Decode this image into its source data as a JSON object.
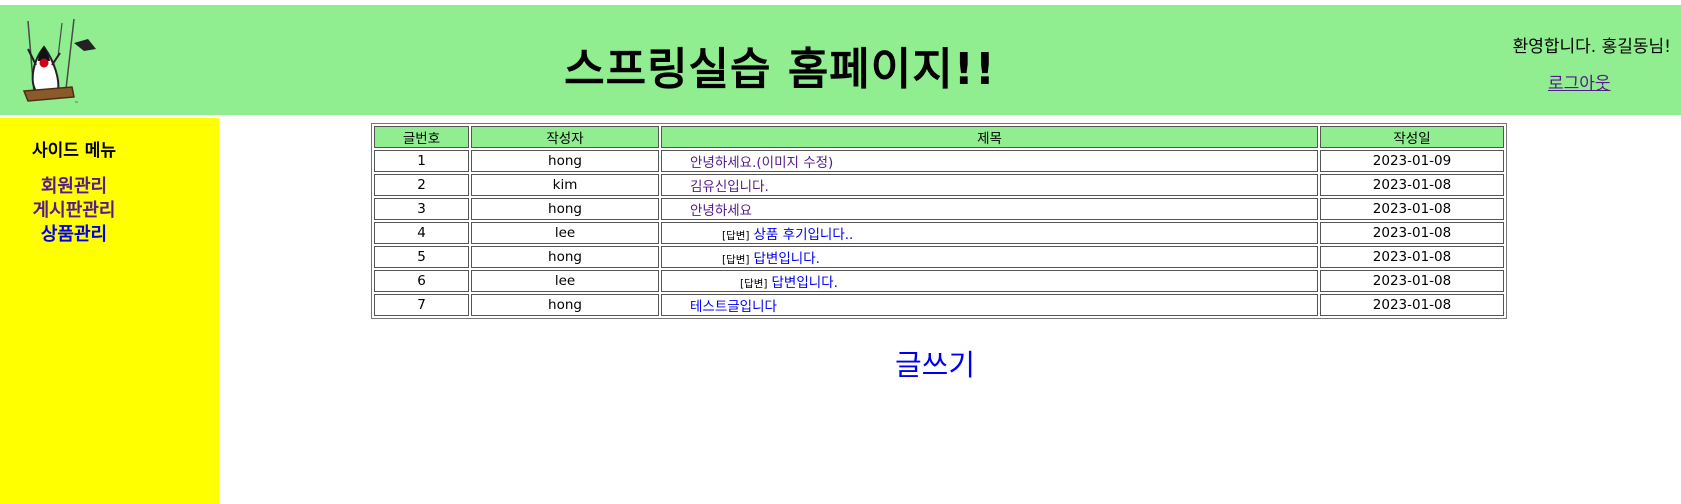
{
  "header": {
    "title": "스프링실습 홈페이지!!",
    "welcome": "환영합니다. 홍길동님!",
    "logout": "로그아웃"
  },
  "sidebar": {
    "title": "사이드 메뉴",
    "items": [
      {
        "label": "회원관리",
        "color": "#551a8b"
      },
      {
        "label": "게시판관리",
        "color": "#551a8b"
      },
      {
        "label": "상품관리",
        "color": "#0000ee"
      }
    ]
  },
  "board": {
    "columns": [
      "글번호",
      "작성자",
      "제목",
      "작성일"
    ],
    "reply_tag": "[답변]",
    "rows": [
      {
        "no": "1",
        "writer": "hong",
        "title": "안녕하세요.(이미지 수정)",
        "date": "2023-01-09",
        "depth": 0,
        "visited": true
      },
      {
        "no": "2",
        "writer": "kim",
        "title": "김유신입니다.",
        "date": "2023-01-08",
        "depth": 0,
        "visited": true
      },
      {
        "no": "3",
        "writer": "hong",
        "title": "안녕하세요",
        "date": "2023-01-08",
        "depth": 0,
        "visited": true
      },
      {
        "no": "4",
        "writer": "lee",
        "title": "상품 후기입니다..",
        "date": "2023-01-08",
        "depth": 1,
        "visited": false
      },
      {
        "no": "5",
        "writer": "hong",
        "title": "답변입니다.",
        "date": "2023-01-08",
        "depth": 1,
        "visited": false
      },
      {
        "no": "6",
        "writer": "lee",
        "title": "답변입니다.",
        "date": "2023-01-08",
        "depth": 2,
        "visited": false
      },
      {
        "no": "7",
        "writer": "hong",
        "title": "테스트글입니다",
        "date": "2023-01-08",
        "depth": 0,
        "visited": false
      }
    ]
  },
  "write_label": "글쓰기",
  "colors": {
    "header_bg": "#90ee90",
    "sidebar_bg": "#ffff00",
    "link": "#0000ee",
    "visited": "#551a8b"
  },
  "icons": {
    "logo": "java-duke-swing-logo"
  }
}
